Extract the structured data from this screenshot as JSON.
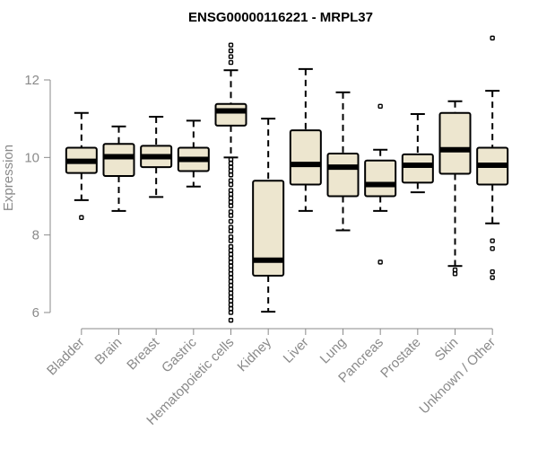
{
  "chart_data": {
    "type": "boxplot",
    "title": "ENSG00000116221 - MRPL37",
    "xlabel": "",
    "ylabel": "Expression",
    "ylim": [
      5.7,
      13.1
    ],
    "yticks": [
      6,
      8,
      10,
      12
    ],
    "box_color": "#ede6cf",
    "categories": [
      "Bladder",
      "Brain",
      "Breast",
      "Gastric",
      "Hematopoietic cells",
      "Kidney",
      "Liver",
      "Lung",
      "Pancreas",
      "Prostate",
      "Skin",
      "Unknown / Other"
    ],
    "boxes": [
      {
        "label": "Bladder",
        "whisker_low": 8.9,
        "q1": 9.6,
        "median": 9.9,
        "q3": 10.25,
        "whisker_high": 11.15,
        "outliers": [
          8.45
        ]
      },
      {
        "label": "Brain",
        "whisker_low": 8.62,
        "q1": 9.52,
        "median": 10.02,
        "q3": 10.35,
        "whisker_high": 10.8,
        "outliers": []
      },
      {
        "label": "Breast",
        "whisker_low": 8.98,
        "q1": 9.75,
        "median": 10.02,
        "q3": 10.3,
        "whisker_high": 11.05,
        "outliers": []
      },
      {
        "label": "Gastric",
        "whisker_low": 9.25,
        "q1": 9.65,
        "median": 9.95,
        "q3": 10.25,
        "whisker_high": 10.95,
        "outliers": []
      },
      {
        "label": "Hematopoietic cells",
        "whisker_low": 10.0,
        "q1": 10.82,
        "median": 11.2,
        "q3": 11.38,
        "whisker_high": 12.25,
        "outliers": [
          12.45,
          12.6,
          12.75,
          12.9,
          9.95,
          9.85,
          9.75,
          9.65,
          9.55,
          9.4,
          9.3,
          9.15,
          9.05,
          8.95,
          8.85,
          8.75,
          8.6,
          8.5,
          8.35,
          8.2,
          8.1,
          7.95,
          7.85,
          7.7,
          7.6,
          7.5,
          7.4,
          7.3,
          7.2,
          7.1,
          7.0,
          6.9,
          6.8,
          6.7,
          6.6,
          6.5,
          6.4,
          6.3,
          6.2,
          6.1,
          6.0,
          5.8
        ]
      },
      {
        "label": "Kidney",
        "whisker_low": 6.02,
        "q1": 6.95,
        "median": 7.35,
        "q3": 9.4,
        "whisker_high": 11.0,
        "outliers": []
      },
      {
        "label": "Liver",
        "whisker_low": 8.62,
        "q1": 9.3,
        "median": 9.82,
        "q3": 10.7,
        "whisker_high": 12.28,
        "outliers": []
      },
      {
        "label": "Lung",
        "whisker_low": 8.12,
        "q1": 9.0,
        "median": 9.75,
        "q3": 10.1,
        "whisker_high": 11.68,
        "outliers": []
      },
      {
        "label": "Pancreas",
        "whisker_low": 8.62,
        "q1": 9.0,
        "median": 9.3,
        "q3": 9.92,
        "whisker_high": 10.2,
        "outliers": [
          11.32,
          7.3
        ]
      },
      {
        "label": "Prostate",
        "whisker_low": 9.1,
        "q1": 9.35,
        "median": 9.8,
        "q3": 10.08,
        "whisker_high": 11.12,
        "outliers": []
      },
      {
        "label": "Skin",
        "whisker_low": 7.2,
        "q1": 9.58,
        "median": 10.2,
        "q3": 11.15,
        "whisker_high": 11.45,
        "outliers": [
          7.1,
          7.0
        ]
      },
      {
        "label": "Unknown / Other",
        "whisker_low": 8.3,
        "q1": 9.3,
        "median": 9.8,
        "q3": 10.25,
        "whisker_high": 11.72,
        "outliers": [
          13.08,
          7.85,
          7.65,
          7.05,
          6.9
        ]
      }
    ]
  }
}
